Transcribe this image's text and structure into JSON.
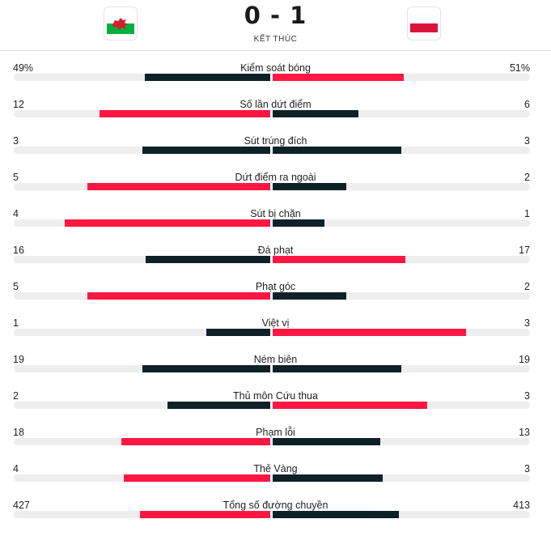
{
  "match": {
    "score": "0 - 1",
    "status": "KẾT THÚC",
    "home_team_flag": "wales-flag-icon",
    "away_team_flag": "poland-flag-icon"
  },
  "colors": {
    "leading": "#ff1744",
    "trailing": "#0d2127",
    "track": "#eeeeee"
  },
  "stats": [
    {
      "label": "Kiểm soát bóng",
      "home": "49%",
      "away": "51%",
      "home_share": 0.49,
      "away_share": 0.51
    },
    {
      "label": "Số lần dứt điểm",
      "home": "12",
      "away": "6",
      "home_share": 0.667,
      "away_share": 0.333
    },
    {
      "label": "Sút trúng đích",
      "home": "3",
      "away": "3",
      "home_share": 0.5,
      "away_share": 0.5
    },
    {
      "label": "Dứt điểm ra ngoài",
      "home": "5",
      "away": "2",
      "home_share": 0.714,
      "away_share": 0.286
    },
    {
      "label": "Sút bị chặn",
      "home": "4",
      "away": "1",
      "home_share": 0.8,
      "away_share": 0.2
    },
    {
      "label": "Đá phạt",
      "home": "16",
      "away": "17",
      "home_share": 0.485,
      "away_share": 0.515
    },
    {
      "label": "Phạt góc",
      "home": "5",
      "away": "2",
      "home_share": 0.714,
      "away_share": 0.286
    },
    {
      "label": "Việt vị",
      "home": "1",
      "away": "3",
      "home_share": 0.25,
      "away_share": 0.75
    },
    {
      "label": "Ném biên",
      "home": "19",
      "away": "19",
      "home_share": 0.5,
      "away_share": 0.5
    },
    {
      "label": "Thủ môn Cứu thua",
      "home": "2",
      "away": "3",
      "home_share": 0.4,
      "away_share": 0.6
    },
    {
      "label": "Phạm lỗi",
      "home": "18",
      "away": "13",
      "home_share": 0.581,
      "away_share": 0.419
    },
    {
      "label": "Thẻ Vàng",
      "home": "4",
      "away": "3",
      "home_share": 0.571,
      "away_share": 0.429
    },
    {
      "label": "Tổng số đường chuyền",
      "home": "427",
      "away": "413",
      "home_share": 0.508,
      "away_share": 0.492
    }
  ]
}
